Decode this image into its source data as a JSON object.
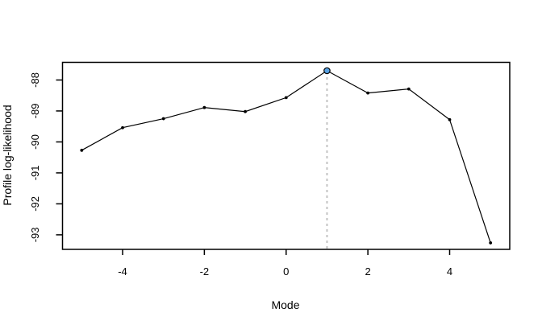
{
  "figure": {
    "background": "#ffffff",
    "plot_border_color": "#000000"
  },
  "chart_data": {
    "type": "line",
    "title": "",
    "xlabel": "Mode",
    "ylabel": "Profile log-likelihood",
    "x": [
      -5,
      -4,
      -3,
      -2,
      -1,
      0,
      1,
      2,
      3,
      4,
      5
    ],
    "y": [
      -90.27,
      -89.54,
      -89.25,
      -88.89,
      -89.02,
      -88.57,
      -87.7,
      -88.42,
      -88.29,
      -89.28,
      -93.26
    ],
    "line_color": "#000000",
    "marker_color": "#000000",
    "xticks": [
      -4,
      -2,
      0,
      2,
      4
    ],
    "yticks": [
      -88,
      -89,
      -90,
      -91,
      -92,
      -93
    ],
    "xlim": [
      -5.47,
      5.47
    ],
    "ylim": [
      -93.47,
      -87.43
    ],
    "grid": false,
    "legend": null,
    "highlight_point": {
      "x": 1,
      "y": -87.7,
      "fill": "#57a1e3",
      "stroke": "#000000"
    },
    "guide_line": {
      "x": 1,
      "to_y": -87.7,
      "color": "#c3c3c3",
      "style": "dashed"
    }
  }
}
